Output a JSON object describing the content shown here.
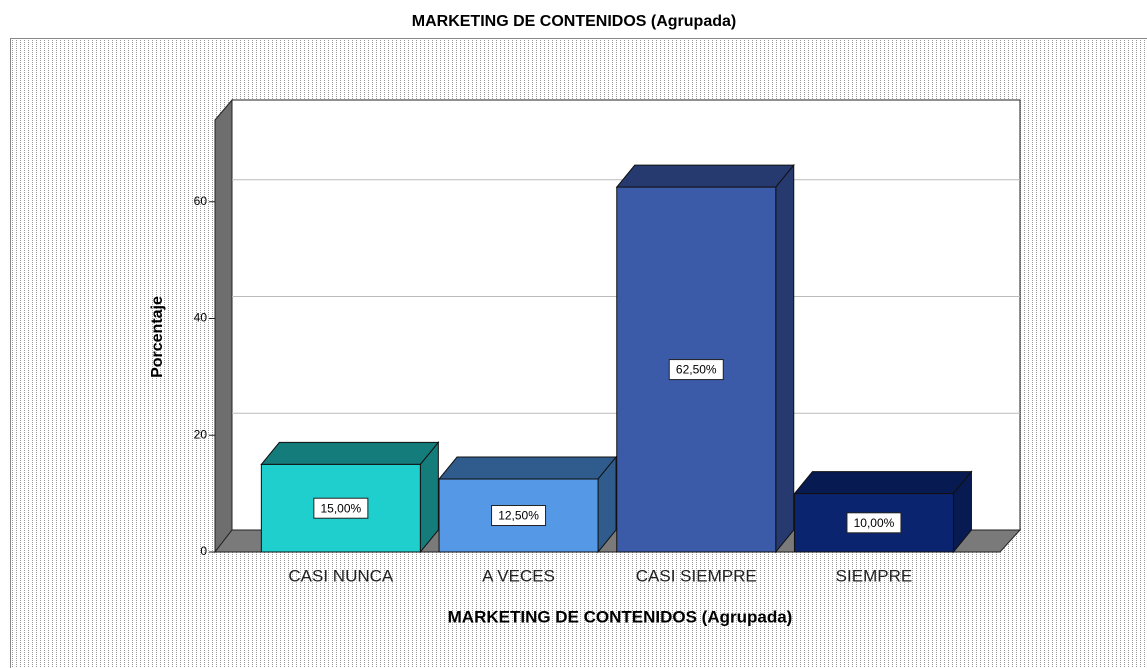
{
  "chart_data": {
    "type": "bar3d",
    "title": "MARKETING DE CONTENIDOS (Agrupada)",
    "x_label": "MARKETING DE CONTENIDOS (Agrupada)",
    "y_label": "Porcentaje",
    "categories": [
      "CASI NUNCA",
      "A VECES",
      "CASI SIEMPRE",
      "SIEMPRE"
    ],
    "values": [
      15,
      12.5,
      62.5,
      10
    ],
    "value_labels": [
      "15,00%",
      "12,50%",
      "62,50%",
      "10,00%"
    ],
    "colors": [
      "#1ecfcd",
      "#5598e6",
      "#3b5ba9",
      "#0b246f"
    ],
    "top_colors": [
      "#147c7a",
      "#2f5c8c",
      "#263a70",
      "#071a52"
    ],
    "ylim": [
      0,
      74
    ],
    "yticks": [
      0,
      20,
      40,
      60
    ],
    "grid": true
  }
}
